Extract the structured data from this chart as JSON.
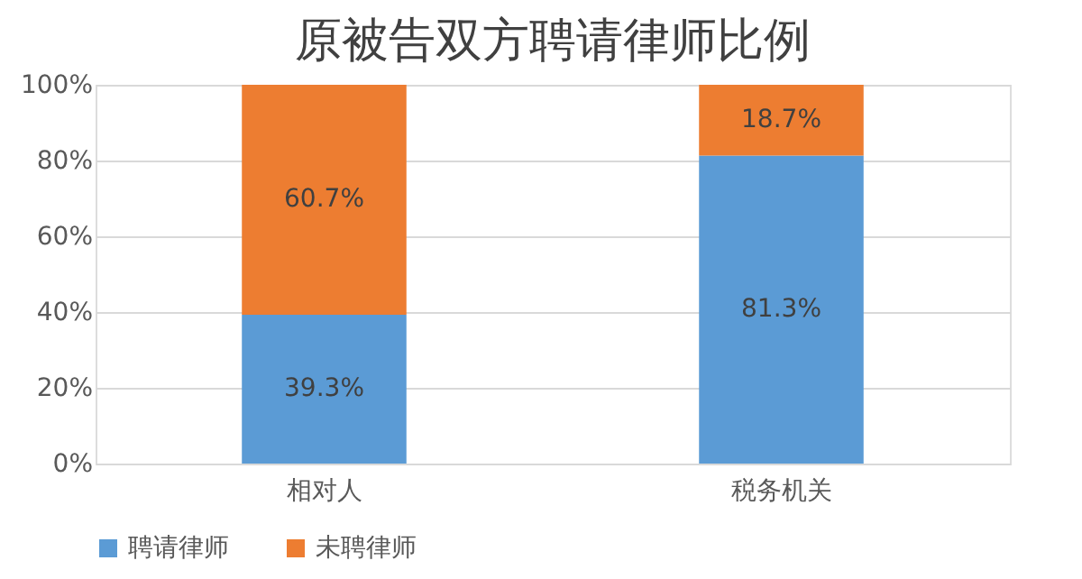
{
  "chart_data": {
    "type": "bar",
    "title": "原被告双方聘请律师比例",
    "stacked": true,
    "categories": [
      "相对人",
      "税务机关"
    ],
    "series": [
      {
        "name": "聘请律师",
        "color": "#5b9bd5",
        "values": [
          39.3,
          81.3
        ],
        "value_labels": [
          "39.3%",
          "81.3%"
        ]
      },
      {
        "name": "未聘律师",
        "color": "#ed7d31",
        "values": [
          60.7,
          18.7
        ],
        "value_labels": [
          "60.7%",
          "18.7%"
        ]
      }
    ],
    "ylim": [
      0,
      100
    ],
    "yticks": [
      {
        "value": 0,
        "label": "0%"
      },
      {
        "value": 20,
        "label": "20%"
      },
      {
        "value": 40,
        "label": "40%"
      },
      {
        "value": 60,
        "label": "60%"
      },
      {
        "value": 80,
        "label": "80%"
      },
      {
        "value": 100,
        "label": "100%"
      }
    ],
    "grid": "y",
    "legend": "bottom"
  }
}
